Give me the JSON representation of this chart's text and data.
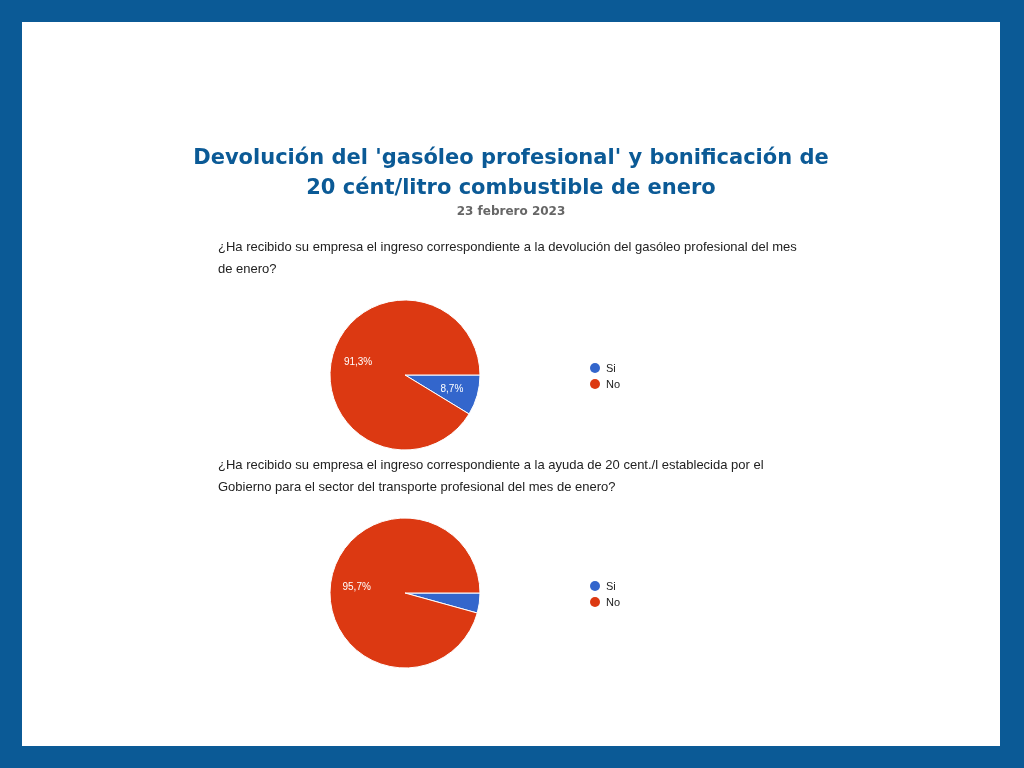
{
  "chart_data": [
    {
      "type": "pie",
      "title": "Devolución del 'gasóleo profesional' y bonificación de 20 cént/litro combustible de enero",
      "subtitle": "23 febrero 2023",
      "annotations": [
        "¿Ha recibido su empresa el ingreso correspondiente a la devolución del gasóleo profesional del mes de enero?"
      ],
      "categories": [
        "Si",
        "No"
      ],
      "values": [
        8.7,
        91.3
      ],
      "colors": [
        "#3366cc",
        "#dc3912"
      ],
      "value_labels": [
        "8,7%",
        "91,3%"
      ],
      "legend": "right"
    },
    {
      "type": "pie",
      "title": "¿Ha recibido su empresa el ingreso correspondiente a la ayuda de 20 cent./l establecida por el Gobierno para el sector del transporte profesional del mes de enero?",
      "categories": [
        "Si",
        "No"
      ],
      "values": [
        4.3,
        95.7
      ],
      "colors": [
        "#3366cc",
        "#dc3912"
      ],
      "value_labels": [
        null,
        "95,7%"
      ],
      "legend": "right"
    }
  ]
}
